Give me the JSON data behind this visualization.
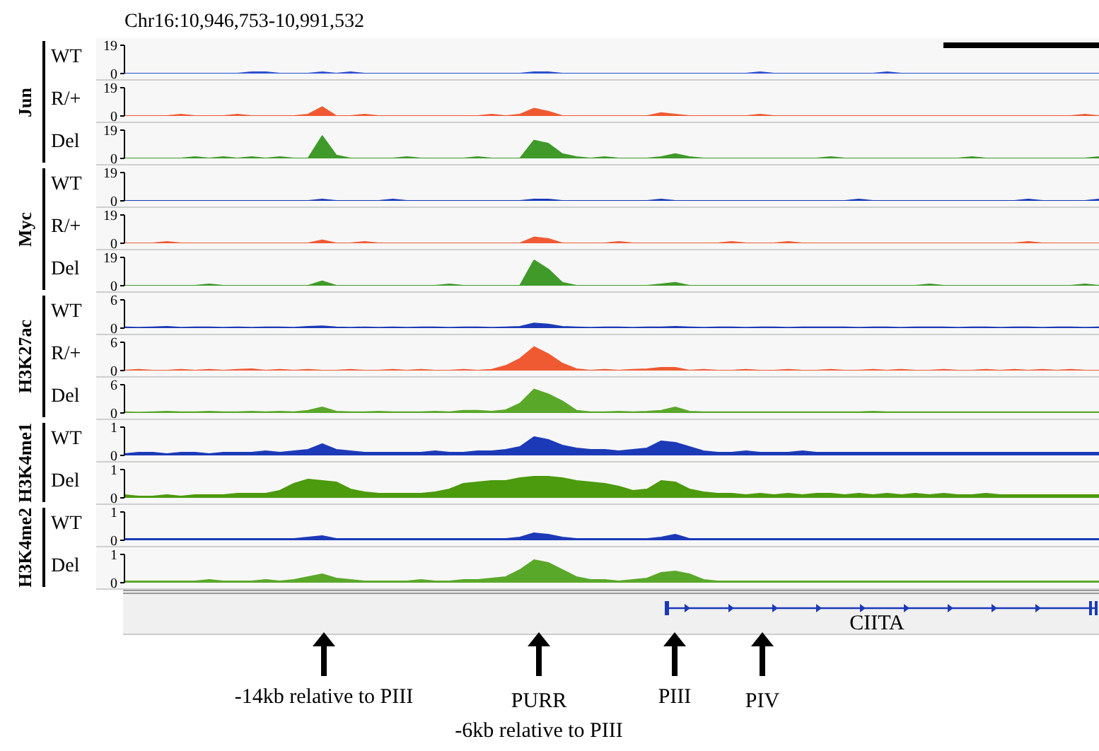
{
  "chart_data": [
    {
      "type": "area",
      "title": "Chr16:10,946,753-10,991,532",
      "tick_labels": "y",
      "ylim": [
        0,
        19
      ],
      "yticks": [
        0,
        19
      ],
      "categories": [
        null,
        null,
        null,
        null,
        null,
        null,
        null,
        null,
        null,
        null,
        null,
        null,
        null,
        null,
        null,
        null,
        null,
        null,
        null,
        null,
        null,
        null,
        null,
        null,
        null,
        null,
        null,
        null,
        null,
        null,
        null,
        null,
        null,
        null,
        null,
        null,
        null,
        null,
        null,
        null,
        null,
        null,
        null,
        null,
        null,
        null,
        null,
        null,
        null,
        null,
        null,
        null,
        null,
        null,
        null,
        null,
        null,
        null,
        null,
        null,
        null,
        null,
        null,
        null,
        null,
        null,
        null,
        null,
        null,
        null
      ],
      "series": [
        {
          "name": "WT",
          "color": "#2a4fd0",
          "values": [
            0,
            0,
            0,
            0,
            0,
            0,
            0,
            0,
            0,
            1,
            1,
            0,
            0,
            0,
            1,
            0,
            1,
            0,
            0,
            0,
            0,
            0,
            0,
            0,
            0,
            0,
            0,
            0,
            0,
            1,
            1,
            0,
            0,
            0,
            0,
            0,
            0,
            0,
            0,
            0,
            0,
            0,
            0,
            0,
            0,
            1,
            0,
            0,
            0,
            0,
            0,
            0,
            0,
            0,
            1,
            0,
            0,
            0,
            0,
            0,
            0,
            0,
            0,
            0,
            0,
            0,
            0,
            0,
            0,
            0
          ]
        }
      ]
    },
    {
      "type": "area",
      "ylabel": "Jun",
      "tick_labels": "y",
      "ylim": [
        0,
        19
      ],
      "yticks": [
        0,
        19
      ],
      "categories": [
        null,
        null,
        null,
        null,
        null,
        null,
        null,
        null,
        null,
        null,
        null,
        null,
        null,
        null,
        null,
        null,
        null,
        null,
        null,
        null,
        null,
        null,
        null,
        null,
        null,
        null,
        null,
        null,
        null,
        null,
        null,
        null,
        null,
        null,
        null,
        null,
        null,
        null,
        null,
        null,
        null,
        null,
        null,
        null,
        null,
        null,
        null,
        null,
        null,
        null,
        null,
        null,
        null,
        null,
        null,
        null,
        null,
        null,
        null,
        null,
        null,
        null,
        null,
        null,
        null,
        null,
        null,
        null,
        null,
        null
      ],
      "series": [
        {
          "name": "R/+",
          "color": "#f05a32",
          "values": [
            0,
            0,
            0,
            0,
            1,
            0,
            0,
            0,
            1,
            0,
            0,
            0,
            0,
            1,
            6,
            0,
            0,
            1,
            0,
            0,
            0,
            0,
            0,
            0,
            0,
            0,
            1,
            0,
            1,
            5,
            3,
            0,
            0,
            0,
            0,
            0,
            0,
            0,
            2,
            1,
            0,
            0,
            0,
            0,
            0,
            1,
            0,
            0,
            0,
            0,
            0,
            0,
            0,
            0,
            0,
            0,
            0,
            0,
            0,
            0,
            0,
            0,
            0,
            0,
            0,
            0,
            0,
            0,
            1,
            0
          ]
        }
      ]
    },
    {
      "type": "area",
      "tick_labels": "y",
      "ylim": [
        0,
        19
      ],
      "yticks": [
        0,
        19
      ],
      "categories": [
        null,
        null,
        null,
        null,
        null,
        null,
        null,
        null,
        null,
        null,
        null,
        null,
        null,
        null,
        null,
        null,
        null,
        null,
        null,
        null,
        null,
        null,
        null,
        null,
        null,
        null,
        null,
        null,
        null,
        null,
        null,
        null,
        null,
        null,
        null,
        null,
        null,
        null,
        null,
        null,
        null,
        null,
        null,
        null,
        null,
        null,
        null,
        null,
        null,
        null,
        null,
        null,
        null,
        null,
        null,
        null,
        null,
        null,
        null,
        null,
        null,
        null,
        null,
        null,
        null,
        null,
        null,
        null,
        null,
        null
      ],
      "series": [
        {
          "name": "Del",
          "color": "#3f9a2a",
          "values": [
            0,
            0,
            0,
            0,
            0,
            1,
            0,
            1,
            0,
            1,
            0,
            1,
            0,
            0,
            15,
            2,
            0,
            0,
            0,
            0,
            1,
            0,
            0,
            0,
            0,
            1,
            0,
            0,
            0,
            12,
            10,
            3,
            1,
            0,
            1,
            0,
            0,
            0,
            1,
            3,
            1,
            0,
            0,
            0,
            0,
            0,
            0,
            0,
            0,
            0,
            1,
            0,
            0,
            0,
            0,
            0,
            0,
            0,
            0,
            0,
            1,
            0,
            0,
            0,
            0,
            0,
            0,
            0,
            0,
            1
          ]
        }
      ]
    },
    {
      "type": "area",
      "tick_labels": "y",
      "ylim": [
        0,
        19
      ],
      "yticks": [
        0,
        19
      ],
      "categories": [
        null,
        null,
        null,
        null,
        null,
        null,
        null,
        null,
        null,
        null,
        null,
        null,
        null,
        null,
        null,
        null,
        null,
        null,
        null,
        null,
        null,
        null,
        null,
        null,
        null,
        null,
        null,
        null,
        null,
        null,
        null,
        null,
        null,
        null,
        null,
        null,
        null,
        null,
        null,
        null,
        null,
        null,
        null,
        null,
        null,
        null,
        null,
        null,
        null,
        null,
        null,
        null,
        null,
        null,
        null,
        null,
        null,
        null,
        null,
        null,
        null,
        null,
        null,
        null,
        null,
        null,
        null,
        null,
        null,
        null
      ],
      "series": [
        {
          "name": "WT",
          "color": "#1c3ab8",
          "values": [
            0,
            0,
            0,
            0,
            0,
            0,
            0,
            0,
            0,
            0,
            0,
            0,
            0,
            0,
            1,
            0,
            0,
            0,
            0,
            1,
            0,
            0,
            0,
            0,
            0,
            0,
            0,
            0,
            0,
            1,
            1,
            0,
            0,
            0,
            0,
            0,
            0,
            0,
            1,
            0,
            0,
            0,
            0,
            0,
            0,
            0,
            0,
            0,
            0,
            0,
            0,
            0,
            1,
            0,
            0,
            0,
            0,
            0,
            0,
            0,
            0,
            0,
            0,
            0,
            1,
            0,
            0,
            0,
            0,
            1
          ]
        }
      ]
    },
    {
      "type": "area",
      "ylabel": "Myc",
      "tick_labels": "y",
      "ylim": [
        0,
        19
      ],
      "yticks": [
        0,
        19
      ],
      "categories": [
        null,
        null,
        null,
        null,
        null,
        null,
        null,
        null,
        null,
        null,
        null,
        null,
        null,
        null,
        null,
        null,
        null,
        null,
        null,
        null,
        null,
        null,
        null,
        null,
        null,
        null,
        null,
        null,
        null,
        null,
        null,
        null,
        null,
        null,
        null,
        null,
        null,
        null,
        null,
        null,
        null,
        null,
        null,
        null,
        null,
        null,
        null,
        null,
        null,
        null,
        null,
        null,
        null,
        null,
        null,
        null,
        null,
        null,
        null,
        null,
        null,
        null,
        null,
        null,
        null,
        null,
        null,
        null,
        null,
        null
      ],
      "series": [
        {
          "name": "R/+",
          "color": "#f05a32",
          "values": [
            0,
            0,
            0,
            1,
            0,
            0,
            0,
            0,
            0,
            0,
            0,
            0,
            0,
            0,
            2,
            0,
            0,
            1,
            0,
            0,
            0,
            0,
            0,
            0,
            0,
            0,
            0,
            0,
            0,
            4,
            3,
            0,
            0,
            0,
            0,
            1,
            0,
            0,
            0,
            0,
            0,
            0,
            0,
            1,
            0,
            0,
            0,
            1,
            0,
            0,
            0,
            0,
            0,
            0,
            0,
            0,
            0,
            0,
            0,
            0,
            0,
            0,
            0,
            0,
            1,
            0,
            0,
            0,
            0,
            0
          ]
        }
      ]
    },
    {
      "type": "area",
      "tick_labels": "y",
      "ylim": [
        0,
        19
      ],
      "yticks": [
        0,
        19
      ],
      "categories": [
        null,
        null,
        null,
        null,
        null,
        null,
        null,
        null,
        null,
        null,
        null,
        null,
        null,
        null,
        null,
        null,
        null,
        null,
        null,
        null,
        null,
        null,
        null,
        null,
        null,
        null,
        null,
        null,
        null,
        null,
        null,
        null,
        null,
        null,
        null,
        null,
        null,
        null,
        null,
        null,
        null,
        null,
        null,
        null,
        null,
        null,
        null,
        null,
        null,
        null,
        null,
        null,
        null,
        null,
        null,
        null,
        null,
        null,
        null,
        null,
        null,
        null,
        null,
        null,
        null,
        null,
        null,
        null,
        null,
        null
      ],
      "series": [
        {
          "name": "Del",
          "color": "#3f9a2a",
          "values": [
            0,
            0,
            0,
            0,
            0,
            0,
            1,
            0,
            0,
            0,
            0,
            0,
            0,
            0,
            3,
            0,
            0,
            0,
            0,
            0,
            0,
            0,
            0,
            1,
            0,
            0,
            0,
            0,
            0,
            17,
            11,
            2,
            0,
            0,
            0,
            0,
            0,
            0,
            1,
            2,
            0,
            0,
            0,
            0,
            0,
            0,
            0,
            0,
            0,
            0,
            0,
            0,
            0,
            0,
            0,
            0,
            0,
            1,
            0,
            0,
            0,
            0,
            0,
            0,
            0,
            0,
            0,
            0,
            1,
            0
          ]
        }
      ]
    },
    {
      "type": "area",
      "tick_labels": "y",
      "ylim": [
        0,
        6
      ],
      "yticks": [
        0,
        6
      ],
      "categories": [
        null,
        null,
        null,
        null,
        null,
        null,
        null,
        null,
        null,
        null,
        null,
        null,
        null,
        null,
        null,
        null,
        null,
        null,
        null,
        null,
        null,
        null,
        null,
        null,
        null,
        null,
        null,
        null,
        null,
        null,
        null,
        null,
        null,
        null,
        null,
        null,
        null,
        null,
        null,
        null,
        null,
        null,
        null,
        null,
        null,
        null,
        null,
        null,
        null,
        null,
        null,
        null,
        null,
        null,
        null,
        null,
        null,
        null,
        null,
        null,
        null,
        null,
        null,
        null,
        null,
        null,
        null,
        null,
        null,
        null
      ],
      "series": [
        {
          "name": "WT",
          "color": "#1c3ab8",
          "values": [
            0.2,
            0.1,
            0.2,
            0.3,
            0.1,
            0.2,
            0.2,
            0.1,
            0.2,
            0.1,
            0.2,
            0.2,
            0.1,
            0.3,
            0.4,
            0.2,
            0.1,
            0.2,
            0.1,
            0.2,
            0.1,
            0.2,
            0.2,
            0.1,
            0.2,
            0.2,
            0.1,
            0.2,
            0.3,
            1,
            0.8,
            0.3,
            0.2,
            0.1,
            0.2,
            0.2,
            0.1,
            0.2,
            0.2,
            0.3,
            0.2,
            0.1,
            0.2,
            0.2,
            0.1,
            0.2,
            0.2,
            0.1,
            0.2,
            0.2,
            0.2,
            0.2,
            0.1,
            0.2,
            0.2,
            0.1,
            0.2,
            0.2,
            0.2,
            0.1,
            0.2,
            0.2,
            0.1,
            0.2,
            0.2,
            0.1,
            0.2,
            0.2,
            0.1,
            0.2
          ]
        }
      ]
    },
    {
      "type": "area",
      "ylabel": "H3K27ac",
      "tick_labels": "y",
      "ylim": [
        0,
        6
      ],
      "yticks": [
        0,
        6
      ],
      "categories": [
        null,
        null,
        null,
        null,
        null,
        null,
        null,
        null,
        null,
        null,
        null,
        null,
        null,
        null,
        null,
        null,
        null,
        null,
        null,
        null,
        null,
        null,
        null,
        null,
        null,
        null,
        null,
        null,
        null,
        null,
        null,
        null,
        null,
        null,
        null,
        null,
        null,
        null,
        null,
        null,
        null,
        null,
        null,
        null,
        null,
        null,
        null,
        null,
        null,
        null,
        null,
        null,
        null,
        null,
        null,
        null,
        null,
        null,
        null,
        null,
        null,
        null,
        null,
        null,
        null,
        null,
        null,
        null,
        null,
        null
      ],
      "series": [
        {
          "name": "R/+",
          "color": "#f05a32",
          "values": [
            0,
            0.2,
            0,
            0,
            0.2,
            0,
            0.2,
            0,
            0.2,
            0.3,
            0,
            0.2,
            0,
            0.2,
            0,
            0,
            0.2,
            0,
            0,
            0.2,
            0,
            0.2,
            0,
            0,
            0.2,
            0,
            0.2,
            1,
            2.5,
            5,
            3.5,
            1.5,
            0.3,
            0,
            0.2,
            0,
            0.2,
            0.3,
            0.6,
            0.6,
            0,
            0.2,
            0,
            0,
            0.2,
            0,
            0,
            0.2,
            0,
            0,
            0.2,
            0,
            0,
            0.2,
            0,
            0.2,
            0,
            0,
            0.2,
            0,
            0,
            0.2,
            0,
            0.2,
            0,
            0.2,
            0,
            0.2,
            0,
            0
          ]
        }
      ]
    },
    {
      "type": "area",
      "tick_labels": "y",
      "ylim": [
        0,
        6
      ],
      "yticks": [
        0,
        6
      ],
      "categories": [
        null,
        null,
        null,
        null,
        null,
        null,
        null,
        null,
        null,
        null,
        null,
        null,
        null,
        null,
        null,
        null,
        null,
        null,
        null,
        null,
        null,
        null,
        null,
        null,
        null,
        null,
        null,
        null,
        null,
        null,
        null,
        null,
        null,
        null,
        null,
        null,
        null,
        null,
        null,
        null,
        null,
        null,
        null,
        null,
        null,
        null,
        null,
        null,
        null,
        null,
        null,
        null,
        null,
        null,
        null,
        null,
        null,
        null,
        null,
        null,
        null,
        null,
        null,
        null,
        null,
        null,
        null,
        null,
        null,
        null
      ],
      "series": [
        {
          "name": "Del",
          "color": "#5aa82a",
          "values": [
            0.2,
            0.1,
            0.2,
            0.3,
            0.2,
            0.2,
            0.3,
            0.2,
            0.2,
            0.3,
            0.2,
            0.3,
            0.2,
            0.5,
            1.2,
            0.3,
            0.2,
            0.2,
            0.3,
            0.2,
            0.2,
            0.2,
            0.3,
            0.2,
            0.5,
            0.5,
            0.3,
            0.6,
            2,
            5,
            4,
            2.5,
            0.5,
            0.2,
            0.2,
            0.3,
            0.2,
            0.3,
            0.5,
            1.2,
            0.3,
            0.2,
            0.2,
            0.2,
            0.2,
            0.2,
            0.2,
            0.2,
            0.2,
            0.2,
            0.2,
            0.2,
            0.2,
            0.3,
            0.2,
            0.2,
            0.2,
            0.2,
            0.2,
            0.2,
            0.2,
            0.2,
            0.2,
            0.2,
            0.2,
            0.2,
            0.2,
            0.2,
            0.2,
            0.2
          ]
        }
      ]
    },
    {
      "type": "area",
      "ylabel": "H3K4me1",
      "tick_labels": "y",
      "ylim": [
        0,
        1
      ],
      "yticks": [
        0,
        1
      ],
      "categories": [
        null,
        null,
        null,
        null,
        null,
        null,
        null,
        null,
        null,
        null,
        null,
        null,
        null,
        null,
        null,
        null,
        null,
        null,
        null,
        null,
        null,
        null,
        null,
        null,
        null,
        null,
        null,
        null,
        null,
        null,
        null,
        null,
        null,
        null,
        null,
        null,
        null,
        null,
        null,
        null,
        null,
        null,
        null,
        null,
        null,
        null,
        null,
        null,
        null,
        null,
        null,
        null,
        null,
        null,
        null,
        null,
        null,
        null,
        null,
        null,
        null,
        null,
        null,
        null,
        null,
        null,
        null,
        null,
        null,
        null
      ],
      "series": [
        {
          "name": "WT",
          "color": "#1c3ab8",
          "values": [
            0.05,
            0.1,
            0.1,
            0.05,
            0.1,
            0.1,
            0.05,
            0.1,
            0.1,
            0.1,
            0.15,
            0.1,
            0.15,
            0.2,
            0.4,
            0.2,
            0.15,
            0.1,
            0.1,
            0.1,
            0.1,
            0.1,
            0.15,
            0.1,
            0.1,
            0.15,
            0.15,
            0.2,
            0.3,
            0.65,
            0.55,
            0.35,
            0.25,
            0.2,
            0.2,
            0.15,
            0.2,
            0.25,
            0.5,
            0.45,
            0.3,
            0.15,
            0.1,
            0.1,
            0.15,
            0.1,
            0.1,
            0.1,
            0.15,
            0.1,
            0.1,
            0.1,
            0.1,
            0.1,
            0.1,
            0.1,
            0.1,
            0.1,
            0.1,
            0.1,
            0.1,
            0.1,
            0.1,
            0.1,
            0.1,
            0.1,
            0.1,
            0.1,
            0.1,
            0.1
          ]
        }
      ]
    },
    {
      "type": "area",
      "tick_labels": "y",
      "ylim": [
        0,
        1
      ],
      "yticks": [
        0,
        1
      ],
      "categories": [
        null,
        null,
        null,
        null,
        null,
        null,
        null,
        null,
        null,
        null,
        null,
        null,
        null,
        null,
        null,
        null,
        null,
        null,
        null,
        null,
        null,
        null,
        null,
        null,
        null,
        null,
        null,
        null,
        null,
        null,
        null,
        null,
        null,
        null,
        null,
        null,
        null,
        null,
        null,
        null,
        null,
        null,
        null,
        null,
        null,
        null,
        null,
        null,
        null,
        null,
        null,
        null,
        null,
        null,
        null,
        null,
        null,
        null,
        null,
        null,
        null,
        null,
        null,
        null,
        null,
        null,
        null,
        null,
        null,
        null
      ],
      "series": [
        {
          "name": "Del",
          "color": "#4c9a0e",
          "values": [
            0.1,
            0.05,
            0.05,
            0.1,
            0.05,
            0.1,
            0.1,
            0.1,
            0.15,
            0.15,
            0.15,
            0.25,
            0.5,
            0.65,
            0.6,
            0.55,
            0.3,
            0.2,
            0.15,
            0.15,
            0.15,
            0.15,
            0.2,
            0.3,
            0.5,
            0.55,
            0.6,
            0.6,
            0.7,
            0.75,
            0.75,
            0.7,
            0.6,
            0.55,
            0.5,
            0.4,
            0.25,
            0.3,
            0.6,
            0.55,
            0.3,
            0.2,
            0.15,
            0.15,
            0.1,
            0.15,
            0.1,
            0.15,
            0.1,
            0.15,
            0.15,
            0.1,
            0.15,
            0.1,
            0.15,
            0.1,
            0.15,
            0.1,
            0.15,
            0.1,
            0.1,
            0.15,
            0.1,
            0.1,
            0.1,
            0.1,
            0.1,
            0.1,
            0.1,
            0.1
          ]
        }
      ]
    },
    {
      "type": "area",
      "ylabel": "H3K4me2",
      "tick_labels": "y",
      "ylim": [
        0,
        1
      ],
      "yticks": [
        0,
        1
      ],
      "categories": [
        null,
        null,
        null,
        null,
        null,
        null,
        null,
        null,
        null,
        null,
        null,
        null,
        null,
        null,
        null,
        null,
        null,
        null,
        null,
        null,
        null,
        null,
        null,
        null,
        null,
        null,
        null,
        null,
        null,
        null,
        null,
        null,
        null,
        null,
        null,
        null,
        null,
        null,
        null,
        null,
        null,
        null,
        null,
        null,
        null,
        null,
        null,
        null,
        null,
        null,
        null,
        null,
        null,
        null,
        null,
        null,
        null,
        null,
        null,
        null,
        null,
        null,
        null,
        null,
        null,
        null,
        null,
        null,
        null,
        null
      ],
      "series": [
        {
          "name": "WT",
          "color": "#1c3ab8",
          "values": [
            0.05,
            0.05,
            0.05,
            0.05,
            0.05,
            0.05,
            0.05,
            0.05,
            0.05,
            0.05,
            0.05,
            0.05,
            0.05,
            0.1,
            0.15,
            0.05,
            0.05,
            0.05,
            0.05,
            0.05,
            0.05,
            0.05,
            0.05,
            0.05,
            0.05,
            0.05,
            0.05,
            0.05,
            0.1,
            0.25,
            0.2,
            0.1,
            0.05,
            0.05,
            0.05,
            0.05,
            0.05,
            0.05,
            0.1,
            0.2,
            0.05,
            0.05,
            0.05,
            0.05,
            0.05,
            0.05,
            0.05,
            0.05,
            0.05,
            0.05,
            0.05,
            0.05,
            0.05,
            0.05,
            0.05,
            0.05,
            0.05,
            0.05,
            0.05,
            0.05,
            0.05,
            0.05,
            0.05,
            0.05,
            0.05,
            0.05,
            0.05,
            0.05,
            0.05,
            0.05
          ]
        }
      ]
    },
    {
      "type": "area",
      "tick_labels": "y",
      "ylim": [
        0,
        1
      ],
      "yticks": [
        0,
        1
      ],
      "categories": [
        null,
        null,
        null,
        null,
        null,
        null,
        null,
        null,
        null,
        null,
        null,
        null,
        null,
        null,
        null,
        null,
        null,
        null,
        null,
        null,
        null,
        null,
        null,
        null,
        null,
        null,
        null,
        null,
        null,
        null,
        null,
        null,
        null,
        null,
        null,
        null,
        null,
        null,
        null,
        null,
        null,
        null,
        null,
        null,
        null,
        null,
        null,
        null,
        null,
        null,
        null,
        null,
        null,
        null,
        null,
        null,
        null,
        null,
        null,
        null,
        null,
        null,
        null,
        null,
        null,
        null,
        null,
        null,
        null,
        null
      ],
      "series": [
        {
          "name": "Del",
          "color": "#5aa82a",
          "values": [
            0.05,
            0.05,
            0.05,
            0.05,
            0.05,
            0.05,
            0.1,
            0.05,
            0.05,
            0.05,
            0.1,
            0.05,
            0.1,
            0.2,
            0.3,
            0.15,
            0.1,
            0.05,
            0.05,
            0.05,
            0.05,
            0.1,
            0.05,
            0.05,
            0.1,
            0.1,
            0.15,
            0.2,
            0.45,
            0.8,
            0.7,
            0.45,
            0.2,
            0.1,
            0.1,
            0.05,
            0.1,
            0.15,
            0.35,
            0.4,
            0.3,
            0.1,
            0.05,
            0.05,
            0.05,
            0.05,
            0.05,
            0.05,
            0.05,
            0.05,
            0.05,
            0.05,
            0.05,
            0.05,
            0.05,
            0.05,
            0.05,
            0.05,
            0.05,
            0.05,
            0.05,
            0.05,
            0.05,
            0.05,
            0.05,
            0.05,
            0.05,
            0.05,
            0.05,
            0.05
          ]
        }
      ]
    },
    {
      "type": "other",
      "annotations": [
        "CIITA",
        "-14kb relative to PIII",
        "PURR",
        "-6kb relative to PIII",
        "PIII",
        "PIV"
      ]
    }
  ]
}
